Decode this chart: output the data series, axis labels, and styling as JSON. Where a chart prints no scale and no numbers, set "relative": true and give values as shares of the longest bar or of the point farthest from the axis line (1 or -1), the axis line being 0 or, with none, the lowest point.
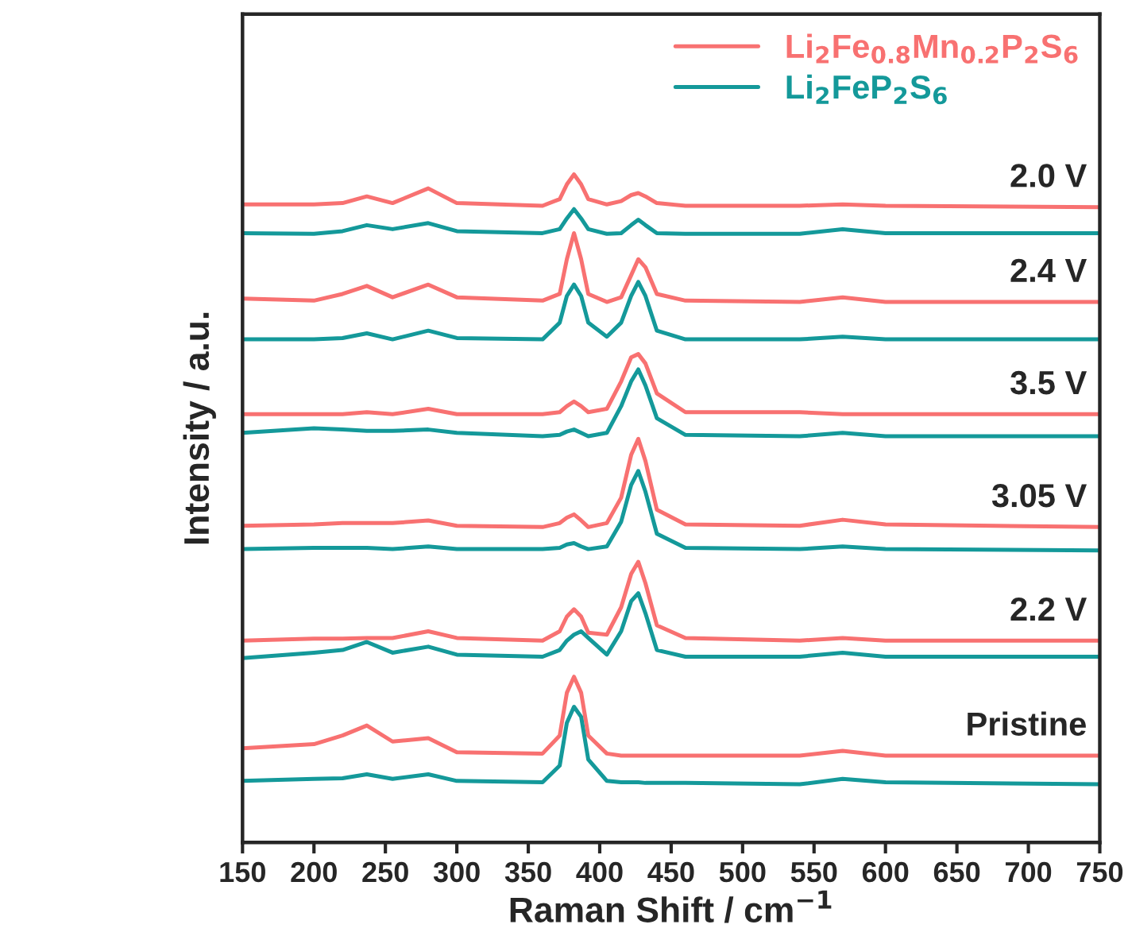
{
  "chart_data": {
    "type": "line",
    "relative": true,
    "xlabel": "Raman Shift / cm$^{−1}$",
    "ylabel": "Intensity / a.u.",
    "xlim": [
      150,
      750
    ],
    "xticks": [
      150,
      200,
      250,
      300,
      350,
      400,
      450,
      500,
      550,
      600,
      650,
      700,
      750
    ],
    "legend": "top right",
    "grid": false,
    "marker": "none",
    "line_style": "solid",
    "x": [
      150,
      200,
      220,
      237,
      255,
      280,
      300,
      360,
      372,
      377,
      382,
      387,
      392,
      405,
      415,
      422,
      427,
      432,
      440,
      460,
      540,
      570,
      600,
      750
    ],
    "series": [
      {
        "name": "Li$_{2}$Fe$_{0.8}$Mn$_{0.2}$P$_{2}$S$_{6}$",
        "color": "#f87171",
        "values": [
          0.955,
          0.955,
          0.957,
          0.967,
          0.957,
          0.979,
          0.957,
          0.953,
          0.963,
          0.985,
          1.0,
          0.985,
          0.963,
          0.955,
          0.96,
          0.969,
          0.972,
          0.967,
          0.957,
          0.953,
          0.953,
          0.955,
          0.953,
          0.951
        ]
      },
      {
        "name": "Li$_{2}$FeP$_{2}$S$_{6}$",
        "color": "#14999a",
        "values": [
          0.912,
          0.911,
          0.915,
          0.924,
          0.918,
          0.927,
          0.915,
          0.912,
          0.918,
          0.934,
          0.948,
          0.934,
          0.918,
          0.911,
          0.912,
          0.924,
          0.932,
          0.924,
          0.912,
          0.911,
          0.911,
          0.918,
          0.912,
          0.912
        ]
      },
      {
        "color": "#f87171",
        "values": [
          0.814,
          0.811,
          0.821,
          0.833,
          0.816,
          0.835,
          0.816,
          0.811,
          0.821,
          0.873,
          0.912,
          0.873,
          0.821,
          0.809,
          0.816,
          0.849,
          0.873,
          0.861,
          0.821,
          0.811,
          0.809,
          0.816,
          0.809,
          0.809
        ]
      },
      {
        "color": "#14999a",
        "values": [
          0.753,
          0.753,
          0.755,
          0.762,
          0.753,
          0.766,
          0.755,
          0.753,
          0.778,
          0.818,
          0.835,
          0.818,
          0.778,
          0.757,
          0.778,
          0.818,
          0.839,
          0.818,
          0.766,
          0.753,
          0.753,
          0.757,
          0.753,
          0.753
        ]
      },
      {
        "color": "#f87171",
        "values": [
          0.641,
          0.641,
          0.641,
          0.644,
          0.641,
          0.649,
          0.641,
          0.641,
          0.644,
          0.653,
          0.66,
          0.653,
          0.644,
          0.649,
          0.69,
          0.726,
          0.731,
          0.717,
          0.672,
          0.644,
          0.644,
          0.641,
          0.641,
          0.641
        ]
      },
      {
        "color": "#14999a",
        "values": [
          0.613,
          0.62,
          0.618,
          0.616,
          0.616,
          0.618,
          0.613,
          0.608,
          0.61,
          0.615,
          0.618,
          0.613,
          0.608,
          0.613,
          0.653,
          0.69,
          0.708,
          0.684,
          0.635,
          0.61,
          0.608,
          0.613,
          0.608,
          0.608
        ]
      },
      {
        "color": "#f87171",
        "values": [
          0.474,
          0.476,
          0.478,
          0.478,
          0.478,
          0.482,
          0.474,
          0.472,
          0.478,
          0.486,
          0.491,
          0.482,
          0.472,
          0.478,
          0.516,
          0.58,
          0.604,
          0.571,
          0.498,
          0.476,
          0.474,
          0.483,
          0.476,
          0.472
        ]
      },
      {
        "color": "#14999a",
        "values": [
          0.439,
          0.441,
          0.441,
          0.441,
          0.439,
          0.443,
          0.439,
          0.439,
          0.441,
          0.446,
          0.448,
          0.443,
          0.439,
          0.443,
          0.48,
          0.535,
          0.556,
          0.525,
          0.462,
          0.441,
          0.439,
          0.443,
          0.439,
          0.437
        ]
      },
      {
        "color": "#f87171",
        "values": [
          0.302,
          0.305,
          0.305,
          0.306,
          0.306,
          0.316,
          0.306,
          0.302,
          0.316,
          0.338,
          0.349,
          0.338,
          0.314,
          0.311,
          0.352,
          0.402,
          0.42,
          0.388,
          0.325,
          0.306,
          0.302,
          0.306,
          0.302,
          0.302
        ]
      },
      {
        "color": "#14999a",
        "values": [
          0.276,
          0.284,
          0.288,
          0.3,
          0.284,
          0.293,
          0.281,
          0.278,
          0.288,
          0.302,
          0.311,
          0.316,
          0.306,
          0.281,
          0.316,
          0.361,
          0.373,
          0.343,
          0.288,
          0.278,
          0.278,
          0.284,
          0.278,
          0.278
        ]
      },
      {
        "color": "#f87171",
        "values": [
          0.141,
          0.147,
          0.16,
          0.175,
          0.151,
          0.156,
          0.135,
          0.133,
          0.16,
          0.224,
          0.248,
          0.224,
          0.16,
          0.133,
          0.13,
          0.13,
          0.13,
          0.13,
          0.13,
          0.13,
          0.13,
          0.137,
          0.13,
          0.13
        ]
      },
      {
        "color": "#14999a",
        "values": [
          0.092,
          0.095,
          0.096,
          0.102,
          0.095,
          0.102,
          0.092,
          0.09,
          0.115,
          0.179,
          0.203,
          0.188,
          0.124,
          0.092,
          0.09,
          0.09,
          0.09,
          0.089,
          0.089,
          0.089,
          0.087,
          0.095,
          0.09,
          0.087
        ]
      }
    ],
    "annotations": [
      "2.0 V",
      "2.4 V",
      "3.5 V",
      "3.05 V",
      "2.2 V",
      "Pristine"
    ]
  }
}
